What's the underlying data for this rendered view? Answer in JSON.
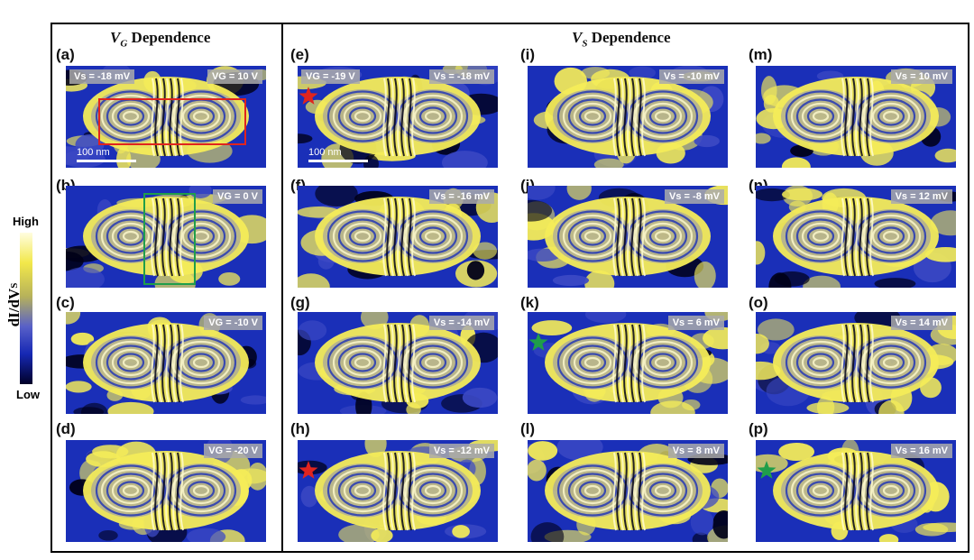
{
  "left_section": {
    "title_var": "V",
    "title_sub": "G",
    "title_rest": " Dependence"
  },
  "right_section": {
    "title_var": "V",
    "title_sub": "S",
    "title_rest": " Dependence"
  },
  "colorbar": {
    "high": "High",
    "low": "Low",
    "label": "dI/dV",
    "label_sub": "S"
  },
  "scale_bar": "100 nm",
  "panels": [
    {
      "id": "a",
      "label": "(a)",
      "tag_left": "Vs = -18 mV",
      "tag_right": "VG = 10 V",
      "markers": [
        "red-rect"
      ],
      "scale": true
    },
    {
      "id": "b",
      "label": "(b)",
      "tag_left": "",
      "tag_right": "VG = 0 V",
      "markers": [
        "green-rect"
      ],
      "scale": false
    },
    {
      "id": "c",
      "label": "(c)",
      "tag_left": "",
      "tag_right": "VG = -10 V",
      "markers": [],
      "scale": false
    },
    {
      "id": "d",
      "label": "(d)",
      "tag_left": "",
      "tag_right": "VG = -20 V",
      "markers": [],
      "scale": false
    },
    {
      "id": "e",
      "label": "(e)",
      "tag_left": "VG = -19 V",
      "tag_right": "Vs = -18 mV",
      "markers": [
        "red-star"
      ],
      "scale": true
    },
    {
      "id": "f",
      "label": "(f)",
      "tag_left": "",
      "tag_right": "Vs = -16 mV",
      "markers": [],
      "scale": false
    },
    {
      "id": "g",
      "label": "(g)",
      "tag_left": "",
      "tag_right": "Vs = -14 mV",
      "markers": [],
      "scale": false
    },
    {
      "id": "h",
      "label": "(h)",
      "tag_left": "",
      "tag_right": "Vs = -12 mV",
      "markers": [
        "red-star"
      ],
      "scale": false
    },
    {
      "id": "i",
      "label": "(i)",
      "tag_left": "",
      "tag_right": "Vs = -10 mV",
      "markers": [],
      "scale": false
    },
    {
      "id": "j",
      "label": "(j)",
      "tag_left": "",
      "tag_right": "Vs = -8 mV",
      "markers": [],
      "scale": false
    },
    {
      "id": "k",
      "label": "(k)",
      "tag_left": "",
      "tag_right": "Vs = 6 mV",
      "markers": [
        "green-star"
      ],
      "scale": false
    },
    {
      "id": "l",
      "label": "(l)",
      "tag_left": "",
      "tag_right": "Vs = 8 mV",
      "markers": [],
      "scale": false
    },
    {
      "id": "m",
      "label": "(m)",
      "tag_left": "",
      "tag_right": "Vs = 10 mV",
      "markers": [],
      "scale": false
    },
    {
      "id": "n",
      "label": "(n)",
      "tag_left": "",
      "tag_right": "Vs = 12 mV",
      "markers": [],
      "scale": false
    },
    {
      "id": "o",
      "label": "(o)",
      "tag_left": "",
      "tag_right": "Vs = 14 mV",
      "markers": [],
      "scale": false
    },
    {
      "id": "p",
      "label": "(p)",
      "tag_left": "",
      "tag_right": "Vs = 16 mV",
      "markers": [
        "green-star"
      ],
      "scale": false
    }
  ],
  "colors": {
    "blue": "#1a2fb8",
    "yellow": "#f4ec58",
    "pale": "#fffbd0",
    "dark": "#000018",
    "red": "#e0241e",
    "green": "#1f9e4a"
  }
}
